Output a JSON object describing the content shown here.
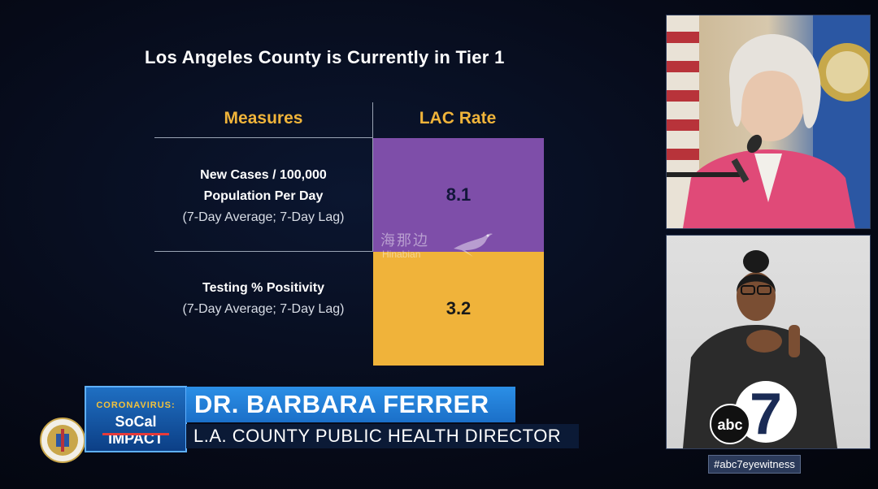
{
  "slide": {
    "title": "Los Angeles County is Currently in Tier 1",
    "table": {
      "headers": [
        "Measures",
        "LAC Rate"
      ],
      "rows": [
        {
          "measure_line1": "New Cases / 100,000",
          "measure_line2": "Population Per Day",
          "measure_note": "(7-Day Average; 7-Day Lag)",
          "rate": "8.1",
          "rate_color": "#7e4ea9"
        },
        {
          "measure_line1": "Testing % Positivity",
          "measure_note": "(7-Day Average; 7-Day Lag)",
          "rate": "3.2",
          "rate_color": "#f0b33a"
        }
      ]
    }
  },
  "watermark": {
    "chinese": "海那边",
    "latin": "Hinabian"
  },
  "lower_third": {
    "badge_top": "CORONAVIRUS:",
    "badge_main": "SoCal IMPACT",
    "name": "DR. BARBARA FERRER",
    "title": "L.A. COUNTY PUBLIC HEALTH DIRECTOR"
  },
  "broadcast": {
    "hashtag": "#abc7eyewitness",
    "logo_text": "abc",
    "logo_number": "7"
  },
  "colors": {
    "header_gold": "#f0b43a",
    "purple": "#7e4ea9",
    "gold": "#f0b33a",
    "name_bar_blue": "#2b8fe6"
  }
}
